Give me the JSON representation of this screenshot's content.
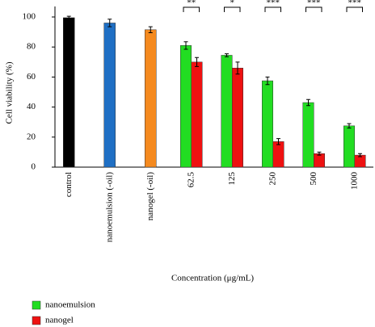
{
  "chart_data": {
    "type": "bar",
    "y_label": "Cell viability (%)",
    "x_label": "Concentration (μg/mL)",
    "categories": [
      "control",
      "nanoemulsion (-oil)",
      "nanogel (-oil)",
      "62.5",
      "125",
      "250",
      "500",
      "1000"
    ],
    "single_bars": {
      "values": [
        99.5,
        96,
        91.5,
        null,
        null,
        null,
        null,
        null
      ],
      "errors": [
        1,
        2.5,
        2,
        null,
        null,
        null,
        null,
        null
      ],
      "colors": [
        "#000000",
        "#1f6fc4",
        "#f58a1f",
        null,
        null,
        null,
        null,
        null
      ]
    },
    "series": [
      {
        "name": "nanoemulsion",
        "color": "#22dd22",
        "values": [
          null,
          null,
          null,
          81,
          74.5,
          57.5,
          43,
          27.5
        ],
        "errors": [
          null,
          null,
          null,
          2.5,
          1,
          2.5,
          2,
          1.5
        ]
      },
      {
        "name": "nanogel",
        "color": "#ee1111",
        "values": [
          null,
          null,
          null,
          70,
          66,
          17,
          9,
          8
        ],
        "errors": [
          null,
          null,
          null,
          3,
          4,
          2,
          1,
          1
        ]
      }
    ],
    "significance": [
      null,
      null,
      null,
      "**",
      "*",
      "***",
      "***",
      "***"
    ],
    "ylim": [
      0,
      107
    ],
    "yticks": [
      0,
      20,
      40,
      60,
      80,
      100
    ],
    "legend": "bottom-left"
  }
}
